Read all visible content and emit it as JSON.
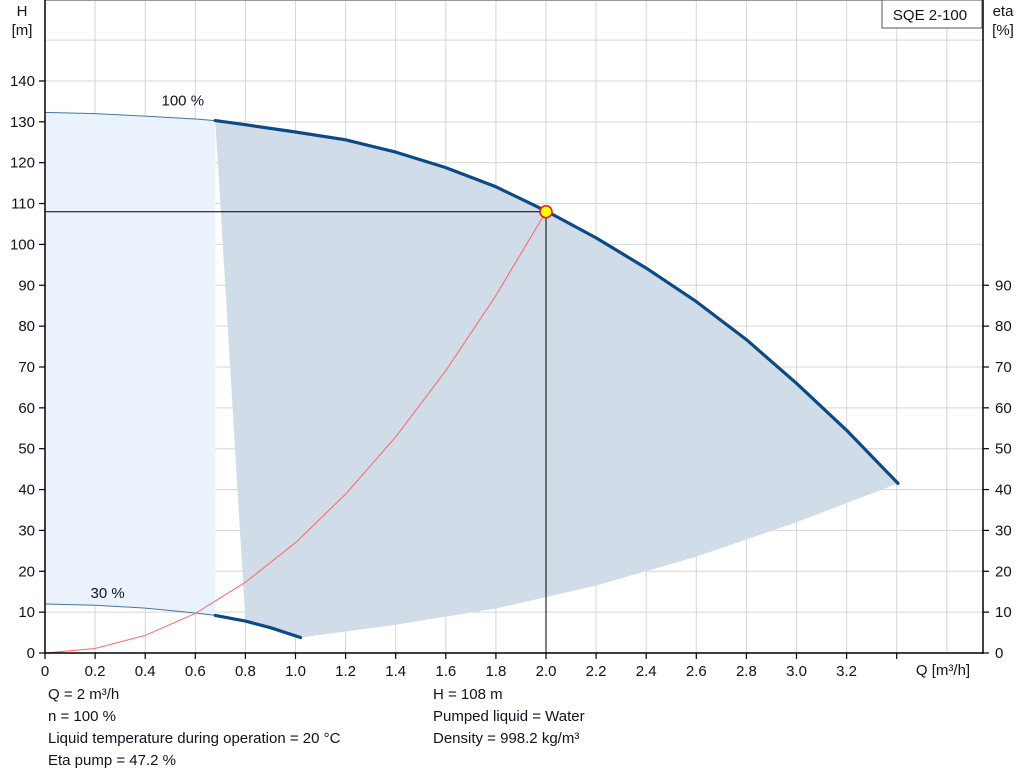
{
  "chart_data": {
    "type": "line",
    "title": "SQE 2-100",
    "xlabel": "Q [m³/h]",
    "ylabel": "H [m]",
    "ylabel_line1": "H",
    "ylabel_line2": "[m]",
    "y2label_line1": "eta",
    "y2label_line2": "[%]",
    "xlim": [
      0,
      3.6
    ],
    "ylim": [
      0,
      160
    ],
    "y2lim": [
      0,
      160
    ],
    "x_ticks": [
      0,
      0.2,
      0.4,
      0.6,
      0.8,
      1.0,
      1.2,
      1.4,
      1.6,
      1.8,
      2.0,
      2.2,
      2.4,
      2.6,
      2.8,
      3.0,
      3.2,
      3.4
    ],
    "x_tick_labels": [
      "0",
      "0.2",
      "0.4",
      "0.6",
      "0.8",
      "1.0",
      "1.2",
      "1.4",
      "1.6",
      "1.8",
      "2.0",
      "2.2",
      "2.4",
      "2.6",
      "2.8",
      "3.0",
      "3.2",
      ""
    ],
    "y_ticks": [
      0,
      10,
      20,
      30,
      40,
      50,
      60,
      70,
      80,
      90,
      100,
      110,
      120,
      130,
      140
    ],
    "y2_ticks": [
      0,
      10,
      20,
      30,
      40,
      50,
      60,
      70,
      80,
      90
    ],
    "grid": true,
    "series": [
      {
        "name": "100 %",
        "role": "pump-curve-max-speed",
        "color": "#0b4a85",
        "x": [
          0,
          0.2,
          0.4,
          0.6,
          0.68,
          0.8,
          1.0,
          1.2,
          1.4,
          1.6,
          1.8,
          2.0,
          2.2,
          2.4,
          2.6,
          2.8,
          3.0,
          3.2,
          3.405
        ],
        "y": [
          132.3,
          132.0,
          131.4,
          130.7,
          130.3,
          129.3,
          127.5,
          125.6,
          122.6,
          118.8,
          114.1,
          108.2,
          101.6,
          94.2,
          86.0,
          76.7,
          66.0,
          54.5,
          41.5
        ],
        "thin_until_x": 0.68
      },
      {
        "name": "30 %",
        "role": "pump-curve-min-speed",
        "color": "#0b4a85",
        "x": [
          0,
          0.2,
          0.4,
          0.6,
          0.68,
          0.8,
          0.9,
          1.02
        ],
        "y": [
          12.0,
          11.7,
          11.0,
          9.8,
          9.2,
          7.8,
          6.2,
          3.8
        ],
        "thin_until_x": 0.68
      },
      {
        "name": "System curve",
        "role": "system-curve",
        "color": "#ff6666",
        "x": [
          0,
          0.2,
          0.4,
          0.6,
          0.8,
          1.0,
          1.2,
          1.4,
          1.6,
          1.8,
          2.0
        ],
        "y": [
          0,
          1.1,
          4.3,
          9.7,
          17.3,
          27.0,
          38.9,
          52.9,
          69.1,
          87.5,
          108.0
        ]
      },
      {
        "name": "Operating range lower boundary",
        "role": "range-boundary",
        "x": [
          1.02,
          1.4,
          1.8,
          2.2,
          2.6,
          3.0,
          3.405
        ],
        "y": [
          3.8,
          6.9,
          10.9,
          16.5,
          23.6,
          32.0,
          41.5
        ]
      }
    ],
    "operating_point": {
      "x": 2.0,
      "y": 108.0,
      "fill": "#ffff00",
      "stroke": "#ee1111"
    },
    "shaded_regions": [
      {
        "name": "extended-range",
        "color": "#eaf3fb",
        "x_from": 0,
        "x_to": 0.68
      },
      {
        "name": "operating-range",
        "color": "#d0dce7"
      }
    ],
    "annotations": [
      {
        "text": "100 %",
        "x": 0.55,
        "y": 134
      },
      {
        "text": "30 %",
        "x": 0.25,
        "y": 13.5
      }
    ]
  },
  "info": {
    "left": [
      "Q = 2 m³/h",
      "n = 100 %",
      "Liquid temperature during operation = 20 °C",
      "Eta pump = 47.2 %"
    ],
    "right": [
      "H = 108 m",
      "Pumped liquid = Water",
      "Density = 998.2 kg/m³"
    ]
  },
  "colors": {
    "curve": "#0b4a85",
    "system_curve": "#ff6666",
    "operating_fill": "#d0dce7",
    "extended_fill": "#eaf3fb",
    "grid": "#d6d6d6",
    "axis": "#000000",
    "text": "#111122"
  }
}
